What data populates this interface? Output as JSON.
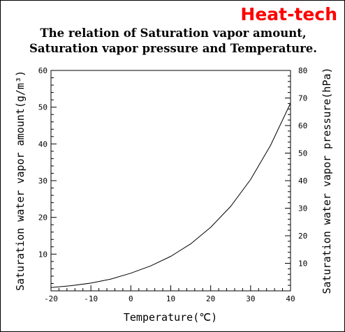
{
  "brand": "Heat-tech",
  "title_lines": [
    "The relation of Saturation vapor amount,",
    "Saturation vapor pressure and Temperature."
  ],
  "chart_data": {
    "type": "line",
    "title": "The relation of Saturation vapor amount, Saturation vapor pressure and Temperature.",
    "xlabel": "Temperature(℃)",
    "ylabel_left": "Saturation water vapor amount(g/m³)",
    "ylabel_right": "Saturation water vapor pressure(hPa)",
    "xlim": [
      -20,
      40
    ],
    "ylim_left": [
      0,
      60
    ],
    "ylim_right": [
      0,
      80
    ],
    "x_ticks": [
      "-20",
      "-10",
      "0",
      "10",
      "20",
      "30",
      "40"
    ],
    "y_left_ticks": [
      "10",
      "20",
      "30",
      "40",
      "50",
      "60"
    ],
    "y_right_ticks": [
      "10",
      "20",
      "30",
      "40",
      "50",
      "60",
      "70",
      "80"
    ],
    "grid": false,
    "series": [
      {
        "x": [
          -20,
          -15,
          -10,
          -5,
          0,
          5,
          10,
          15,
          20,
          25,
          30,
          35,
          40
        ],
        "y": [
          0.9,
          1.4,
          2.1,
          3.2,
          4.8,
          6.8,
          9.4,
          12.8,
          17.3,
          23.0,
          30.3,
          39.6,
          51.1
        ],
        "color": "#000000"
      }
    ]
  }
}
